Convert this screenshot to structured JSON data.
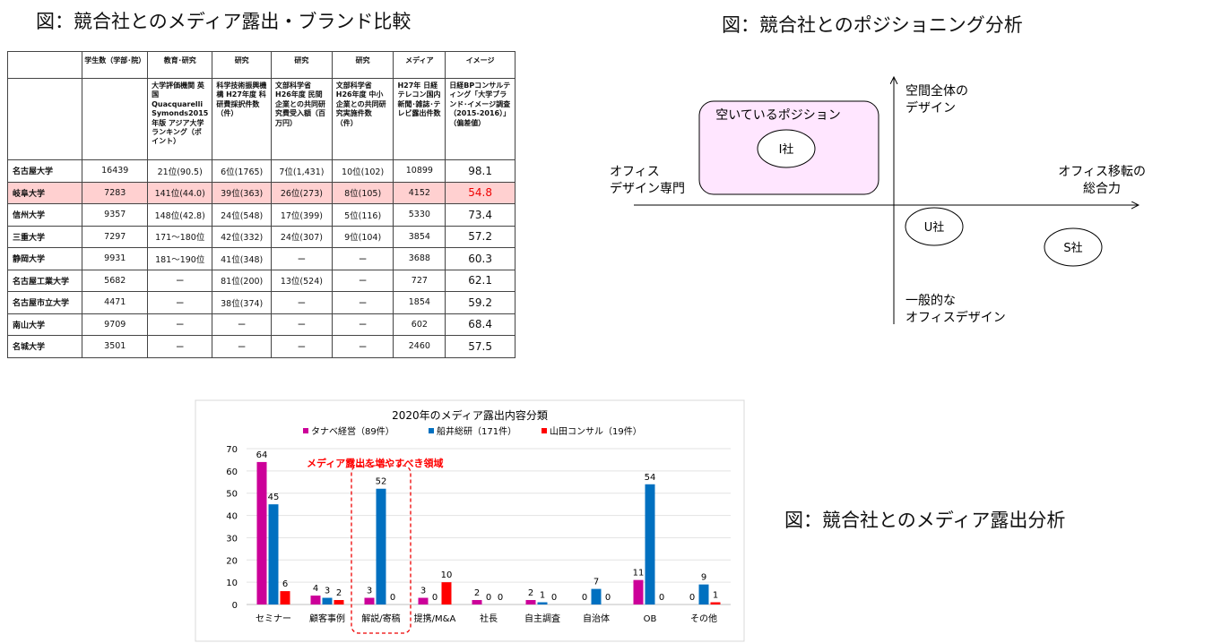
{
  "titles": {
    "table": "図：競合社とのメディア露出・ブランド比較",
    "positioning": "図：競合社とのポジショニング分析",
    "media": "図：競合社とのメディア露出分析"
  },
  "table": {
    "headers": [
      "",
      "学生数（学部･院）",
      "教育･研究",
      "研究",
      "研究",
      "研究",
      "メディア",
      "イメージ"
    ],
    "descriptions": [
      "",
      "",
      "大学評価機関 英国 Quacquarelli Symonds2015年版 アジア大学ランキング（ポイント）",
      "科学技術振興機構 H27年度 科研費採択件数（件）",
      "文部科学省 H26年度 民間企業との共同研究費受入額（百万円）",
      "文部科学省 H26年度 中小企業との共同研究実施件数（件）",
      "H27年 日経テレコン国内新聞･雑誌･テレビ露出件数",
      "日経BPコンサルティング「大学ブランド･イメージ調査（2015-2016）」（偏差値）"
    ],
    "rows": [
      [
        "名古屋大学",
        "16439",
        "21位(90.5)",
        "6位(1765)",
        "7位(1,431)",
        "10位(102)",
        "10899",
        "98.1"
      ],
      [
        "岐阜大学",
        "7283",
        "141位(44.0)",
        "39位(363)",
        "26位(273)",
        "8位(105)",
        "4152",
        "54.8"
      ],
      [
        "信州大学",
        "9357",
        "148位(42.8)",
        "24位(548)",
        "17位(399)",
        "5位(116)",
        "5330",
        "73.4"
      ],
      [
        "三重大学",
        "7297",
        "171～180位",
        "42位(332)",
        "24位(307)",
        "9位(104)",
        "3854",
        "57.2"
      ],
      [
        "静岡大学",
        "9931",
        "181～190位",
        "41位(348)",
        "ー",
        "ー",
        "3688",
        "60.3"
      ],
      [
        "名古屋工業大学",
        "5682",
        "ー",
        "81位(200)",
        "13位(524)",
        "ー",
        "727",
        "62.1"
      ],
      [
        "名古屋市立大学",
        "4471",
        "ー",
        "38位(374)",
        "ー",
        "ー",
        "1854",
        "59.2"
      ],
      [
        "南山大学",
        "9709",
        "ー",
        "ー",
        "ー",
        "ー",
        "602",
        "68.4"
      ],
      [
        "名城大学",
        "3501",
        "ー",
        "ー",
        "ー",
        "ー",
        "2460",
        "57.5"
      ]
    ],
    "highlight_row": 1,
    "highlight_color": "#ffd0d0"
  },
  "positioning": {
    "y_top": "空間全体の\nデザイン",
    "y_bottom": "一般的な\nオフィスデザイン",
    "x_left": "オフィス\nデザイン専門",
    "x_right": "オフィス移転の\n総合力",
    "empty_box": "空いているポジション",
    "empty_box_color": "#ffe6ff",
    "companies": [
      "I社",
      "U社",
      "S社"
    ]
  },
  "chart_data": {
    "type": "bar",
    "title": "2020年のメディア露出内容分類",
    "categories": [
      "セミナー",
      "顧客事例",
      "解説/寄稿",
      "提携/M&A",
      "社長",
      "自主調査",
      "自治体",
      "OB",
      "その他"
    ],
    "series": [
      {
        "name": "タナベ経営（89件）",
        "color": "#cc0099",
        "values": [
          64,
          4,
          3,
          3,
          2,
          2,
          0,
          11,
          0
        ]
      },
      {
        "name": "船井総研（171件）",
        "color": "#0070c0",
        "values": [
          45,
          3,
          52,
          0,
          0,
          1,
          7,
          54,
          9
        ]
      },
      {
        "name": "山田コンサル（19件）",
        "color": "#ff0000",
        "values": [
          6,
          2,
          0,
          10,
          0,
          0,
          0,
          0,
          1
        ]
      }
    ],
    "ylim": [
      0,
      70
    ],
    "yticks": [
      0,
      10,
      20,
      30,
      40,
      50,
      60,
      70
    ],
    "grid": true,
    "legend": "top",
    "annotation": "メディア露出を増やすべき領域",
    "annotation_category": "解説/寄稿"
  }
}
